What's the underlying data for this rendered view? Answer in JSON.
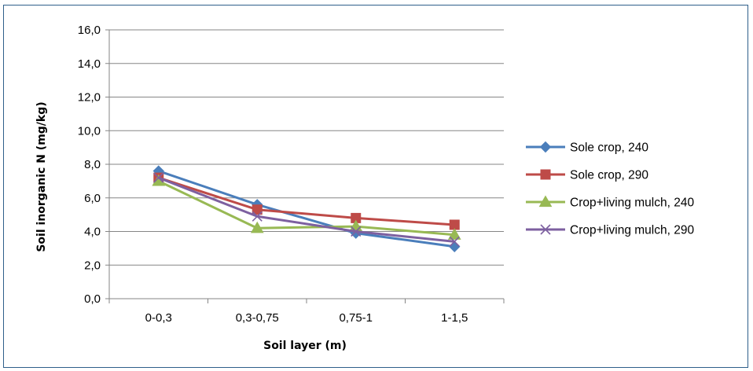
{
  "chart_data": {
    "type": "line",
    "title": "",
    "xlabel": "Soil layer (m)",
    "ylabel": "Soil inorganic N (mg/kg)",
    "categories": [
      "0-0,3",
      "0,3-0,75",
      "0,75-1",
      "1-1,5"
    ],
    "ylim": [
      0,
      16
    ],
    "ytick_step": 2,
    "ytick_labels": [
      "0,0",
      "2,0",
      "4,0",
      "6,0",
      "8,0",
      "10,0",
      "12,0",
      "14,0",
      "16,0"
    ],
    "grid": true,
    "legend_position": "right",
    "series": [
      {
        "name": "Sole crop, 240",
        "values": [
          7.6,
          5.6,
          3.9,
          3.1
        ],
        "color": "#4a7ebb",
        "marker": "diamond"
      },
      {
        "name": "Sole crop, 290",
        "values": [
          7.2,
          5.3,
          4.8,
          4.4
        ],
        "color": "#be4b48",
        "marker": "square"
      },
      {
        "name": "Crop+living mulch, 240",
        "values": [
          7.0,
          4.2,
          4.3,
          3.8
        ],
        "color": "#98b954",
        "marker": "triangle"
      },
      {
        "name": "Crop+living mulch, 290",
        "values": [
          7.2,
          4.9,
          4.0,
          3.4
        ],
        "color": "#7d60a0",
        "marker": "x"
      }
    ]
  }
}
